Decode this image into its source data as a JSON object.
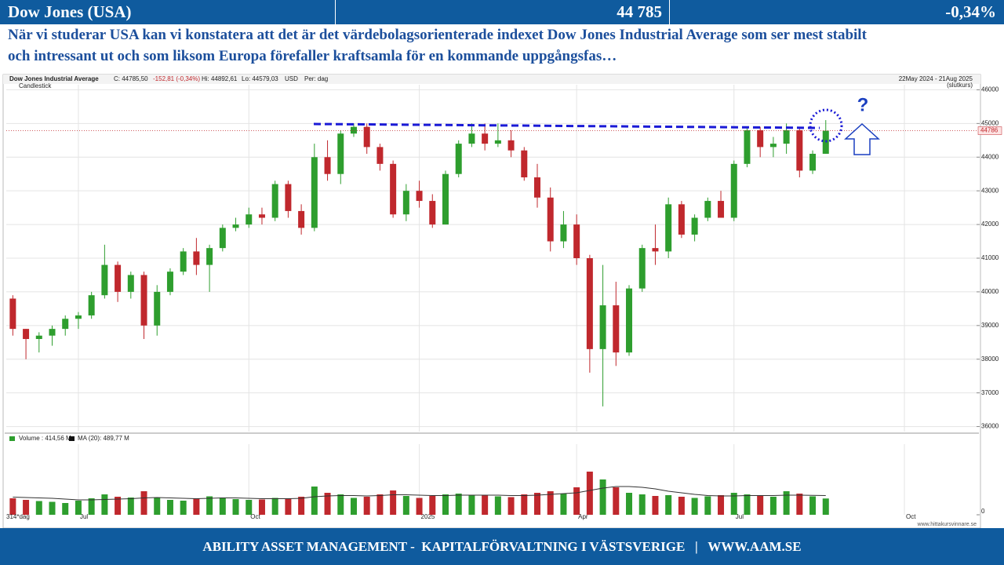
{
  "header": {
    "title": "Dow Jones (USA)",
    "value": "44 785",
    "change": "-0,34%"
  },
  "commentary": {
    "lines": [
      "När vi studerar USA kan vi konstatera att det är det värdebolagsorienterade indexet Dow Jones Industrial Average som ser mest stabilt",
      "och intressant ut och som liksom Europa förefaller kraftsamla för en kommande uppgångsfas…"
    ]
  },
  "chart_data": {
    "type": "candlestick",
    "title": "Dow Jones Industrial Average",
    "close_text": "C: 44785,50",
    "change_text": "-152,81 (-0,34%)",
    "high_text": "Hi: 44892,61",
    "low_text": "Lo: 44579,03",
    "currency": "USD",
    "period": "Per: dag",
    "chart_style": "Candlestick",
    "date_range": "22May 2024 - 21Aug 2025",
    "price_basis": "(slutkurs)",
    "period_count": "314*dag",
    "annotation": "?",
    "source": "www.hittakursvinnare.se",
    "categories": [
      null,
      null,
      null,
      null,
      null,
      "Jul",
      null,
      null,
      null,
      null,
      null,
      null,
      null,
      null,
      null,
      null,
      null,
      null,
      "Oct",
      null,
      null,
      null,
      null,
      null,
      null,
      null,
      null,
      null,
      null,
      null,
      null,
      "2025",
      null,
      null,
      null,
      null,
      null,
      null,
      null,
      null,
      null,
      null,
      null,
      "Apr",
      null,
      null,
      null,
      null,
      null,
      null,
      null,
      null,
      null,
      null,
      null,
      "Jul",
      null,
      null,
      null,
      null,
      null,
      null,
      null,
      null,
      null,
      null,
      null,
      null,
      "Oct",
      null,
      null,
      null,
      null,
      null
    ],
    "open": [
      39800,
      38900,
      38600,
      38700,
      38900,
      39200,
      39300,
      39900,
      40800,
      40000,
      40500,
      39000,
      40000,
      40600,
      41200,
      40800,
      41300,
      41900,
      42000,
      42300,
      42200,
      43200,
      42400,
      41900,
      44000,
      43500,
      44700,
      44900,
      44300,
      43800,
      42300,
      43000,
      42700,
      42000,
      43500,
      44400,
      44700,
      44400,
      44500,
      44200,
      43400,
      42800,
      41500,
      42000,
      41000,
      38300,
      39600,
      38200,
      40100,
      41300,
      41200,
      42600,
      41700,
      42200,
      42700,
      42200,
      43800,
      44800,
      44300,
      44400,
      44800,
      43600,
      44100,
      null,
      null,
      null,
      null,
      null,
      null,
      null,
      null,
      null,
      null,
      null
    ],
    "high": [
      39900,
      38900,
      38800,
      39000,
      39300,
      39400,
      40000,
      41400,
      40900,
      40600,
      40600,
      40200,
      40700,
      41300,
      41600,
      41400,
      42000,
      42200,
      42500,
      42500,
      43300,
      43300,
      42600,
      44400,
      44500,
      44800,
      45000,
      45000,
      44400,
      43900,
      43200,
      43300,
      42900,
      43600,
      44500,
      45000,
      45000,
      45000,
      44800,
      44300,
      43800,
      43100,
      42400,
      42300,
      41100,
      40800,
      40300,
      40200,
      41400,
      42000,
      42800,
      42700,
      42300,
      42800,
      43000,
      43900,
      44900,
      44900,
      44600,
      45000,
      44900,
      44200,
      45100,
      null,
      null,
      null,
      null,
      null,
      null,
      null,
      null,
      null,
      null,
      null
    ],
    "low": [
      38700,
      38000,
      38200,
      38400,
      38700,
      38900,
      39200,
      39800,
      39700,
      39800,
      38600,
      38700,
      39900,
      40500,
      40500,
      40000,
      41200,
      41800,
      41900,
      42000,
      42100,
      42200,
      41700,
      41800,
      43300,
      43200,
      44600,
      44100,
      43600,
      42200,
      42100,
      42500,
      41900,
      42000,
      43400,
      44300,
      44200,
      44300,
      44000,
      43300,
      42500,
      41200,
      41300,
      40800,
      37600,
      36600,
      37800,
      38100,
      40000,
      40800,
      41000,
      41600,
      41500,
      42100,
      42200,
      42100,
      43700,
      44000,
      44000,
      44100,
      43400,
      43500,
      44100,
      null,
      null,
      null,
      null,
      null,
      null,
      null,
      null,
      null,
      null,
      null
    ],
    "close": [
      38900,
      38600,
      38700,
      38900,
      39200,
      39300,
      39900,
      40800,
      40000,
      40500,
      39000,
      40000,
      40600,
      41200,
      40800,
      41300,
      41900,
      42000,
      42300,
      42200,
      43200,
      42400,
      41900,
      44000,
      43500,
      44700,
      44900,
      44300,
      43800,
      42300,
      43000,
      42700,
      42000,
      43500,
      44400,
      44700,
      44400,
      44500,
      44200,
      43400,
      42800,
      41500,
      42000,
      41000,
      38300,
      39600,
      38200,
      40100,
      41300,
      41200,
      42600,
      41700,
      42200,
      42700,
      42200,
      43800,
      44800,
      44300,
      44400,
      44800,
      43600,
      44100,
      44785.5,
      null,
      null,
      null,
      null,
      null,
      null,
      null,
      null,
      null,
      null,
      null
    ],
    "up_color": "#2e9e2e",
    "down_color": "#c0282d",
    "ylim": [
      35850,
      46150
    ],
    "yticks": [
      36000,
      37000,
      38000,
      39000,
      40000,
      41000,
      42000,
      43000,
      44000,
      45000,
      46000
    ],
    "grid": true,
    "last_price_label": 44786,
    "volume": {
      "legend": "Volume : 414,56 M",
      "ma_legend": "MA (20): 489,77 M",
      "ma_color": "#333333",
      "values": [
        420,
        380,
        350,
        330,
        300,
        360,
        420,
        520,
        460,
        440,
        600,
        430,
        380,
        360,
        420,
        470,
        440,
        400,
        380,
        390,
        430,
        410,
        460,
        720,
        560,
        520,
        430,
        460,
        520,
        620,
        480,
        430,
        480,
        520,
        540,
        510,
        500,
        470,
        450,
        520,
        560,
        600,
        540,
        700,
        1100,
        900,
        700,
        560,
        520,
        480,
        500,
        460,
        430,
        470,
        500,
        560,
        520,
        480,
        460,
        600,
        540,
        470,
        415,
        null,
        null,
        null,
        null,
        null,
        null,
        null,
        null,
        null,
        null,
        null
      ],
      "ma_values": [
        450,
        440,
        430,
        420,
        400,
        380,
        380,
        390,
        400,
        410,
        430,
        440,
        430,
        420,
        410,
        420,
        430,
        430,
        420,
        410,
        410,
        410,
        420,
        460,
        480,
        490,
        490,
        480,
        490,
        510,
        510,
        500,
        490,
        490,
        500,
        500,
        500,
        500,
        490,
        490,
        500,
        520,
        540,
        560,
        620,
        680,
        720,
        720,
        700,
        660,
        600,
        560,
        520,
        490,
        480,
        480,
        490,
        490,
        490,
        500,
        500,
        495,
        490,
        null,
        null,
        null,
        null,
        null,
        null,
        null,
        null,
        null,
        null,
        null
      ],
      "ylim": [
        0,
        1800
      ],
      "yticks": [
        0
      ]
    }
  },
  "footer": {
    "text": "ABILITY ASSET MANAGEMENT -  KAPITALFÖRVALTNING I VÄSTSVERIGE   |   WWW.AAM.SE"
  }
}
